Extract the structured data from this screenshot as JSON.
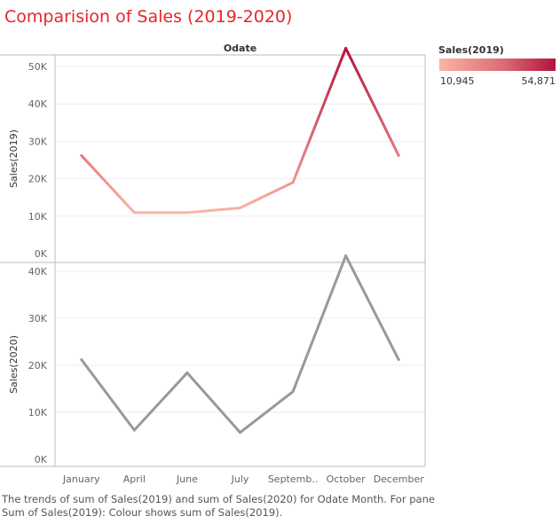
{
  "title": "Comparision of Sales (2019-2020)",
  "caption": {
    "line1": "The trends of sum of Sales(2019) and sum of Sales(2020) for Odate Month.  For pane",
    "line2": "Sum of Sales(2019):  Colour shows sum of Sales(2019)."
  },
  "colors": {
    "title": "#e8252b",
    "gradient_low": "#fbb4a4",
    "gradient_high": "#b3133c",
    "line_2020": "#999999",
    "gridline": "#eeeeee",
    "border": "#bbbbbb"
  },
  "legend": {
    "title": "Sales(2019)",
    "min_label": "10,945",
    "max_label": "54,871",
    "min": 10945,
    "max": 54871
  },
  "chart_data": {
    "type": "line",
    "header": "Odate",
    "categories": [
      "January",
      "April",
      "June",
      "July",
      "Septemb..",
      "October",
      "December"
    ],
    "panes": [
      {
        "ylabel": "Sales(2019)",
        "ylim": [
          0,
          57000
        ],
        "ticks": [
          0,
          10000,
          20000,
          30000,
          40000,
          50000
        ],
        "tick_labels": [
          "0K",
          "10K",
          "20K",
          "30K",
          "40K",
          "50K"
        ],
        "values": [
          26200,
          10945,
          10945,
          12200,
          19000,
          54871,
          26200
        ],
        "color_by_value": true
      },
      {
        "ylabel": "Sales(2020)",
        "ylim": [
          0,
          47000
        ],
        "ticks": [
          0,
          10000,
          20000,
          30000,
          40000
        ],
        "tick_labels": [
          "0K",
          "10K",
          "20K",
          "30K",
          "40K"
        ],
        "values": [
          21200,
          6200,
          18400,
          5700,
          14400,
          43300,
          21200
        ],
        "color_by_value": false
      }
    ],
    "grid": true,
    "legend_position": "top-right"
  }
}
